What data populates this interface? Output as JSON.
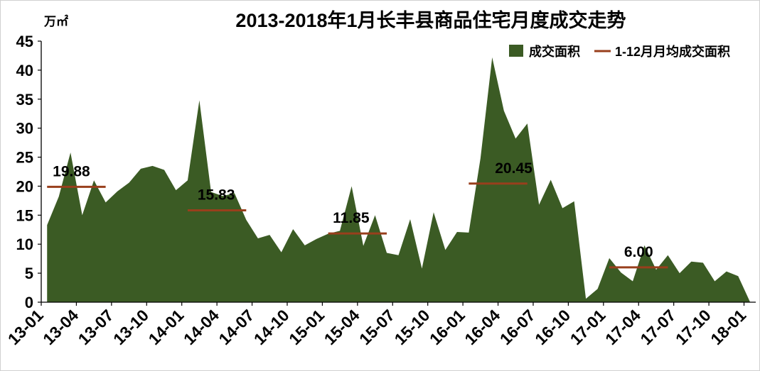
{
  "chart_data": {
    "type": "area",
    "title": "2013-2018年1月长丰县商品住宅月度成交走势",
    "ylabel": "万㎡",
    "xlabel": "",
    "ylim": [
      0,
      45
    ],
    "grid": false,
    "legend_position": "top-right",
    "y_tick_labels": [
      "0",
      "5",
      "10",
      "15",
      "20",
      "25",
      "30",
      "35",
      "40",
      "45"
    ],
    "x_tick_labels": [
      "13-01",
      "13-04",
      "13-07",
      "13-10",
      "14-01",
      "14-04",
      "14-07",
      "14-10",
      "15-01",
      "15-04",
      "15-07",
      "15-10",
      "16-01",
      "16-04",
      "16-07",
      "16-10",
      "17-01",
      "17-04",
      "17-07",
      "17-10",
      "18-01"
    ],
    "series": [
      {
        "name": "成交面积",
        "color": "#3b5b24",
        "values": [
          13.3,
          18.2,
          25.8,
          15.0,
          21.0,
          17.2,
          19.1,
          20.6,
          23.0,
          23.5,
          22.8,
          19.3,
          21.0,
          34.8,
          19.0,
          18.3,
          18.8,
          14.2,
          11.0,
          11.6,
          8.6,
          12.6,
          9.8,
          10.9,
          11.8,
          12.3,
          20.0,
          9.7,
          15.0,
          8.5,
          8.1,
          14.3,
          5.8,
          15.5,
          9.0,
          12.1,
          12.0,
          24.8,
          42.2,
          33.0,
          28.2,
          30.8,
          16.8,
          21.1,
          16.2,
          17.4,
          0.6,
          2.3,
          7.6,
          5.1,
          3.6,
          9.8,
          5.6,
          8.1,
          5.0,
          7.0,
          6.8,
          3.6,
          5.3,
          4.5,
          0.1
        ]
      }
    ],
    "averages": {
      "name": "1-12月月均成交面积",
      "color": "#983f1c",
      "items": [
        {
          "value": 19.88,
          "label": "19.88"
        },
        {
          "value": 15.83,
          "label": "15.83"
        },
        {
          "value": 11.85,
          "label": "11.85"
        },
        {
          "value": 20.45,
          "label": "20.45"
        },
        {
          "value": 6.0,
          "label": "6.00"
        }
      ]
    }
  }
}
